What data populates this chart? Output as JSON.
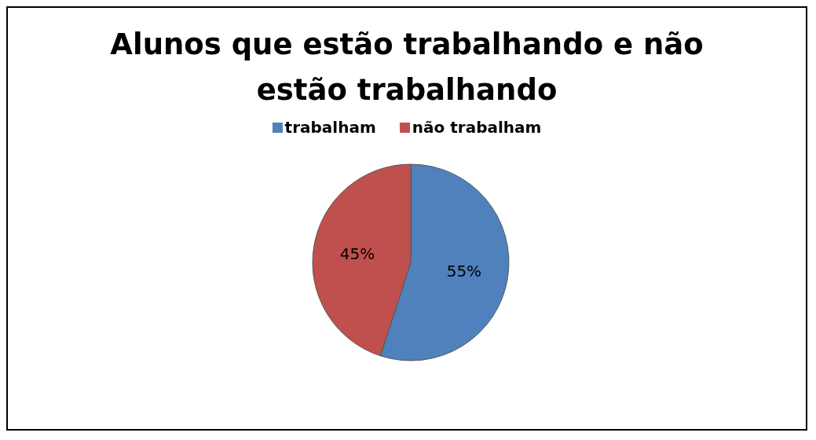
{
  "chart_data": {
    "type": "pie",
    "title": "Alunos que estão trabalhando e não estão trabalhando",
    "categories": [
      "trabalham",
      "não trabalham"
    ],
    "values": [
      55,
      45
    ],
    "colors": [
      "#4f81bd",
      "#c0504d"
    ],
    "value_labels": [
      "55%",
      "45%"
    ],
    "legend": "top"
  }
}
